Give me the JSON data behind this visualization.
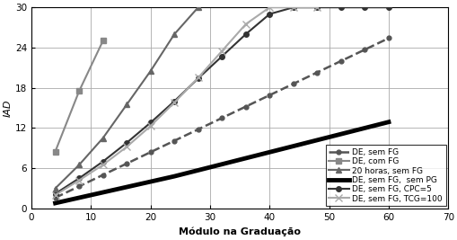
{
  "title": "",
  "xlabel": "Módulo na Graduação",
  "ylabel": "IAD",
  "xlim": [
    0,
    70
  ],
  "ylim": [
    0,
    30
  ],
  "xticks": [
    0,
    10,
    20,
    30,
    40,
    50,
    60,
    70
  ],
  "yticks": [
    0,
    6,
    12,
    18,
    24,
    30
  ],
  "series": [
    {
      "label": "DE, sem FG",
      "x": [
        4,
        8,
        12,
        16,
        20,
        24,
        28,
        32,
        36,
        40,
        44,
        48,
        52,
        56,
        60
      ],
      "y": [
        1.6,
        3.3,
        5.0,
        6.7,
        8.4,
        10.1,
        11.8,
        13.5,
        15.2,
        16.9,
        18.6,
        20.3,
        22.0,
        23.7,
        25.4
      ],
      "color": "#555555",
      "linestyle": "--",
      "linewidth": 1.8,
      "marker": "o",
      "markersize": 3.5,
      "markerfacecolor": "#555555",
      "zorder": 4
    },
    {
      "label": "DE, com FG",
      "x": [
        4,
        8,
        12
      ],
      "y": [
        8.5,
        17.5,
        25.0
      ],
      "color": "#888888",
      "linestyle": "-",
      "linewidth": 1.5,
      "marker": "s",
      "markersize": 5,
      "markerfacecolor": "#888888",
      "zorder": 5
    },
    {
      "label": "20 horas, sem FG",
      "x": [
        4,
        8,
        12,
        16,
        20,
        24,
        28
      ],
      "y": [
        3.0,
        6.5,
        10.5,
        15.5,
        20.5,
        26.0,
        30.0
      ],
      "color": "#666666",
      "linestyle": "-",
      "linewidth": 1.5,
      "marker": "^",
      "markersize": 5,
      "markerfacecolor": "#666666",
      "zorder": 5
    },
    {
      "label": "DE, sem FG,  sem PG",
      "x": [
        4,
        8,
        12,
        16,
        20,
        24,
        28,
        32,
        36,
        40,
        44,
        48,
        52,
        56,
        60
      ],
      "y": [
        0.8,
        1.6,
        2.4,
        3.2,
        4.0,
        4.8,
        5.7,
        6.6,
        7.5,
        8.4,
        9.3,
        10.2,
        11.1,
        12.0,
        12.9
      ],
      "color": "#000000",
      "linestyle": "-",
      "linewidth": 3.5,
      "marker": null,
      "markersize": 0,
      "markerfacecolor": "#000000",
      "zorder": 3
    },
    {
      "label": "DE, sem FG, CPC=5",
      "x": [
        4,
        8,
        12,
        16,
        20,
        24,
        28,
        32,
        36,
        40,
        44,
        48,
        52,
        56,
        60
      ],
      "y": [
        2.2,
        4.5,
        7.0,
        9.8,
        12.8,
        16.0,
        19.4,
        22.7,
        26.0,
        29.0,
        30.0,
        30.0,
        30.0,
        30.0,
        30.0
      ],
      "color": "#333333",
      "linestyle": "-",
      "linewidth": 1.5,
      "marker": "o",
      "markersize": 4,
      "markerfacecolor": "#333333",
      "zorder": 4
    },
    {
      "label": "DE, sem FG, TCG=100",
      "x": [
        4,
        8,
        12,
        16,
        20,
        24,
        28,
        32,
        36,
        40,
        44,
        48
      ],
      "y": [
        2.0,
        4.2,
        6.5,
        9.2,
        12.3,
        15.8,
        19.5,
        23.5,
        27.5,
        30.0,
        30.0,
        30.0
      ],
      "color": "#aaaaaa",
      "linestyle": "-",
      "linewidth": 1.5,
      "marker": "x",
      "markersize": 6,
      "markerfacecolor": "#aaaaaa",
      "zorder": 4
    }
  ],
  "legend_loc": "lower right",
  "legend_fontsize": 6.5,
  "axis_label_fontsize": 8,
  "tick_fontsize": 7.5,
  "background_color": "#ffffff",
  "grid_color": "#aaaaaa"
}
